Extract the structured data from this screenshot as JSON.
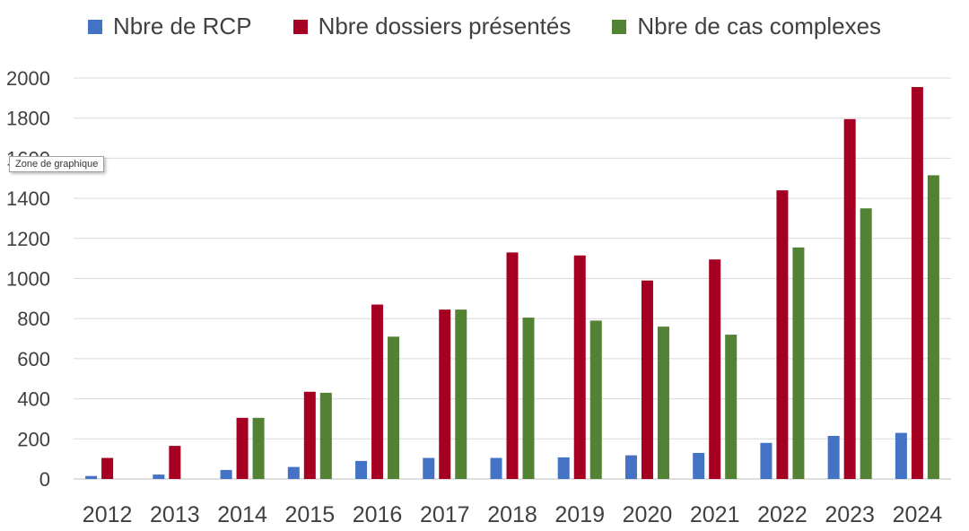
{
  "chart_data": {
    "type": "bar",
    "categories": [
      "2012",
      "2013",
      "2014",
      "2015",
      "2016",
      "2017",
      "2018",
      "2019",
      "2020",
      "2021",
      "2022",
      "2023",
      "2024"
    ],
    "series": [
      {
        "name": "Nbre de RCP",
        "color": "#4472C4",
        "values": [
          15,
          22,
          45,
          60,
          90,
          105,
          105,
          108,
          118,
          130,
          180,
          215,
          230
        ]
      },
      {
        "name": "Nbre dossiers présentés",
        "color": "#A50021",
        "values": [
          105,
          165,
          305,
          435,
          870,
          845,
          1130,
          1115,
          990,
          1095,
          1440,
          1795,
          1955
        ]
      },
      {
        "name": "Nbre de cas complexes",
        "color": "#548235",
        "values": [
          0,
          0,
          305,
          430,
          710,
          845,
          805,
          790,
          760,
          720,
          1155,
          1350,
          1515
        ]
      }
    ],
    "y_ticks": [
      "0",
      "200",
      "400",
      "600",
      "800",
      "1000",
      "1200",
      "1400",
      "1600",
      "1800",
      "2000"
    ],
    "ylim": [
      0,
      2000
    ],
    "grid": true,
    "legend_position": "top"
  },
  "tooltip": "Zone de graphique"
}
